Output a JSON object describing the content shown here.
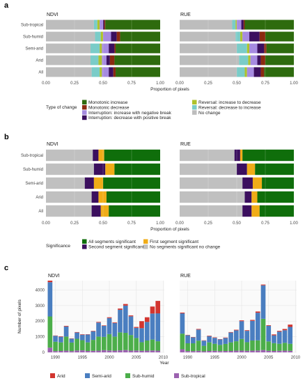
{
  "panels": {
    "a": {
      "letter": "a"
    },
    "b": {
      "letter": "b"
    },
    "c": {
      "letter": "c"
    }
  },
  "chart_data": [
    {
      "id": "a",
      "type": "bar",
      "orientation": "horizontal",
      "stacked": true,
      "facets": [
        "NDVI",
        "RUE"
      ],
      "categories": [
        "Sub-tropical",
        "Sub-humid",
        "Semi-arid",
        "Arid",
        "All"
      ],
      "xlabel": "Proportion of pixels",
      "xlim": [
        0,
        1
      ],
      "xticks": [
        "0.00",
        "0.25",
        "0.50",
        "0.75",
        "1.00"
      ],
      "legend_title": "Type of change",
      "legend_position": "bottom",
      "series": [
        {
          "name": "No change",
          "color": "#BDBDBD",
          "legend_order": 6,
          "NDVI": [
            0.42,
            0.43,
            0.39,
            0.39,
            0.4
          ],
          "RUE": [
            0.46,
            0.49,
            0.5,
            0.52,
            0.5
          ]
        },
        {
          "name": "Reversal: decrease to increase",
          "color": "#7ACCC8",
          "legend_order": 5,
          "NDVI": [
            0.03,
            0.05,
            0.08,
            0.07,
            0.07
          ],
          "RUE": [
            0.03,
            0.04,
            0.09,
            0.08,
            0.07
          ]
        },
        {
          "name": "Reversal: increase to decrease",
          "color": "#AEC22C",
          "legend_order": 4,
          "NDVI": [
            0.02,
            0.02,
            0.02,
            0.03,
            0.02
          ],
          "RUE": [
            0.01,
            0.02,
            0.02,
            0.02,
            0.02
          ]
        },
        {
          "name": "Interruption: increase with negative break",
          "color": "#A68BE0",
          "legend_order": 2,
          "NDVI": [
            0.03,
            0.07,
            0.06,
            0.04,
            0.06
          ],
          "RUE": [
            0.04,
            0.06,
            0.07,
            0.06,
            0.06
          ]
        },
        {
          "name": "Interruption: decrease with positive break",
          "color": "#3B0F5E",
          "legend_order": 3,
          "NDVI": [
            0.01,
            0.05,
            0.05,
            0.03,
            0.04
          ],
          "RUE": [
            0.02,
            0.09,
            0.06,
            0.03,
            0.06
          ]
        },
        {
          "name": "Monotonic decrease",
          "color": "#8B2A10",
          "legend_order": 1,
          "NDVI": [
            0.01,
            0.03,
            0.01,
            0.04,
            0.02
          ],
          "RUE": [
            0.01,
            0.05,
            0.02,
            0.04,
            0.03
          ]
        },
        {
          "name": "Monotonic increase",
          "color": "#2E6B0E",
          "legend_order": 0,
          "NDVI": [
            0.48,
            0.35,
            0.39,
            0.4,
            0.39
          ],
          "RUE": [
            0.43,
            0.25,
            0.24,
            0.25,
            0.26
          ]
        }
      ]
    },
    {
      "id": "b",
      "type": "bar",
      "orientation": "horizontal",
      "stacked": true,
      "facets": [
        "NDVI",
        "RUE"
      ],
      "categories": [
        "Sub-tropical",
        "Sub-humid",
        "Semi-arid",
        "Arid",
        "All"
      ],
      "xlabel": "Proportion of pixels",
      "xlim": [
        0,
        1
      ],
      "xticks": [
        "0.00",
        "0.25",
        "0.50",
        "0.75",
        "1.00"
      ],
      "legend_title": "Significance",
      "legend_position": "bottom",
      "series": [
        {
          "name": "No segments significant no change",
          "color": "#C0C0C0",
          "legend_order": 3,
          "NDVI": [
            0.41,
            0.42,
            0.34,
            0.4,
            0.4
          ],
          "RUE": [
            0.48,
            0.5,
            0.55,
            0.57,
            0.55
          ]
        },
        {
          "name": "Second segment significant",
          "color": "#3B0F5E",
          "legend_order": 1,
          "NDVI": [
            0.05,
            0.1,
            0.08,
            0.06,
            0.08
          ],
          "RUE": [
            0.05,
            0.09,
            0.09,
            0.06,
            0.08
          ]
        },
        {
          "name": "First segment significant",
          "color": "#F0AC18",
          "legend_order": 2,
          "NDVI": [
            0.05,
            0.08,
            0.08,
            0.07,
            0.07
          ],
          "RUE": [
            0.02,
            0.07,
            0.08,
            0.05,
            0.07
          ]
        },
        {
          "name": "All segments significant",
          "color": "#0F6E0B",
          "legend_order": 0,
          "NDVI": [
            0.49,
            0.4,
            0.5,
            0.47,
            0.45
          ],
          "RUE": [
            0.45,
            0.34,
            0.28,
            0.32,
            0.3
          ]
        }
      ]
    },
    {
      "id": "c",
      "type": "bar",
      "stacked": true,
      "facets": [
        "NDVI",
        "RUE"
      ],
      "x": [
        1989,
        1990,
        1991,
        1992,
        1993,
        1994,
        1995,
        1996,
        1997,
        1998,
        1999,
        2000,
        2001,
        2002,
        2003,
        2004,
        2005,
        2006,
        2007,
        2008,
        2009
      ],
      "xlabel": "Year",
      "ylabel": "Number of pixels",
      "ylim": [
        0,
        4600
      ],
      "yticks": [
        0,
        1000,
        2000,
        3000,
        4000
      ],
      "xticks": [
        1990,
        1995,
        2000,
        2005,
        2010
      ],
      "legend_position": "bottom",
      "series": [
        {
          "name": "Sub-tropical",
          "color": "#9C62B0",
          "NDVI": [
            300,
            80,
            90,
            110,
            80,
            120,
            130,
            90,
            100,
            110,
            140,
            120,
            110,
            130,
            150,
            110,
            120,
            100,
            110,
            120,
            110
          ],
          "RUE": [
            200,
            80,
            80,
            100,
            70,
            90,
            100,
            80,
            90,
            90,
            110,
            110,
            100,
            110,
            120,
            150,
            100,
            90,
            100,
            110,
            100
          ]
        },
        {
          "name": "Sub-humid",
          "color": "#4CAE4A",
          "NDVI": [
            2000,
            600,
            550,
            900,
            550,
            750,
            650,
            550,
            700,
            900,
            850,
            1050,
            900,
            1150,
            1100,
            1000,
            800,
            550,
            650,
            700,
            600
          ],
          "RUE": [
            1000,
            500,
            500,
            650,
            350,
            550,
            450,
            400,
            450,
            550,
            600,
            750,
            550,
            650,
            650,
            2000,
            600,
            500,
            450,
            500,
            450
          ]
        },
        {
          "name": "Semi-arid",
          "color": "#4A7EC0",
          "NDVI": [
            2200,
            380,
            360,
            650,
            250,
            400,
            350,
            500,
            550,
            900,
            710,
            1030,
            870,
            1450,
            1750,
            1200,
            650,
            900,
            1190,
            1670,
            1790
          ],
          "RUE": [
            1300,
            520,
            380,
            710,
            330,
            400,
            380,
            350,
            380,
            630,
            700,
            1140,
            730,
            1260,
            1770,
            2150,
            1000,
            500,
            780,
            810,
            1080
          ]
        },
        {
          "name": "Arid",
          "color": "#D2352F",
          "NDVI": [
            100,
            20,
            30,
            40,
            20,
            30,
            30,
            20,
            30,
            40,
            30,
            50,
            40,
            80,
            100,
            60,
            60,
            450,
            300,
            450,
            800
          ],
          "RUE": [
            50,
            20,
            20,
            40,
            20,
            30,
            30,
            20,
            30,
            30,
            40,
            50,
            40,
            60,
            80,
            50,
            40,
            60,
            50,
            80,
            150
          ]
        }
      ]
    }
  ]
}
